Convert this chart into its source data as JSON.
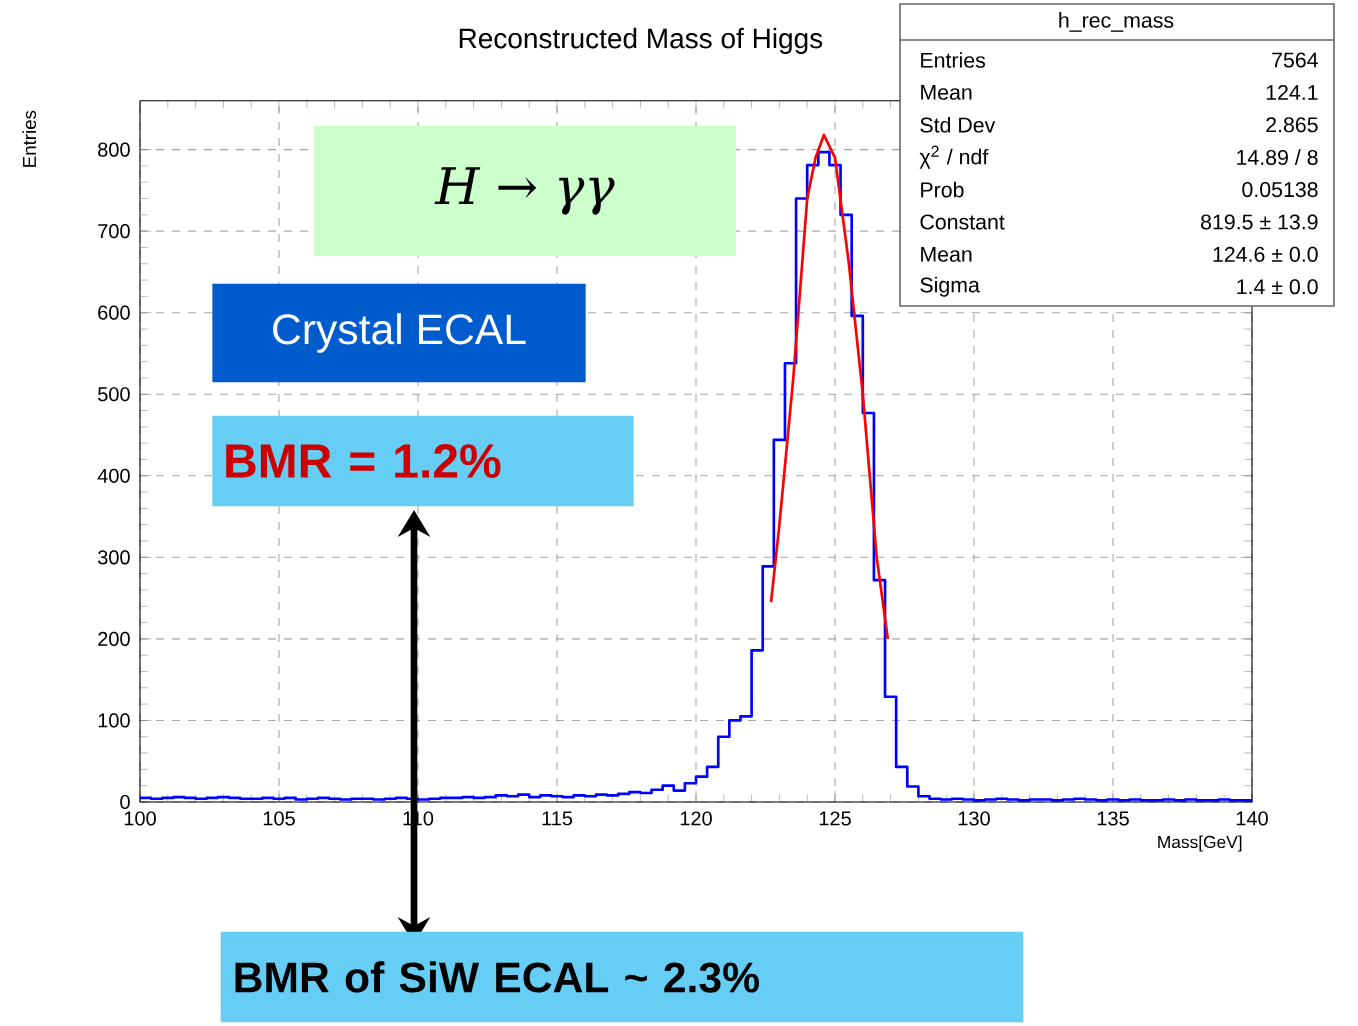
{
  "chart_data": {
    "type": "histogram",
    "title": "Reconstructed Mass of Higgs",
    "xlabel": "Mass[GeV]",
    "ylabel": "Entries",
    "color": "#0000ff",
    "bins": [
      100,
      100.4,
      100.8,
      101.2,
      101.6,
      102,
      102.4,
      102.8,
      103.2,
      103.6,
      104,
      104.4,
      104.8,
      105.2,
      105.6,
      106,
      106.4,
      106.8,
      107.2,
      107.6,
      108,
      108.4,
      108.8,
      109.2,
      109.6,
      110,
      110.4,
      110.8,
      111.2,
      111.6,
      112,
      112.4,
      112.8,
      113.2,
      113.6,
      114,
      114.4,
      114.8,
      115.2,
      115.6,
      116,
      116.4,
      116.8,
      117.2,
      117.6,
      118,
      118.4,
      118.8,
      119.2,
      119.6,
      120,
      120.4,
      120.8,
      121.2,
      121.6,
      122,
      122.4,
      122.8,
      123.2,
      123.6,
      124,
      124.4,
      124.8,
      125.2,
      125.6,
      126,
      126.4,
      126.8,
      127.2,
      127.6,
      128,
      128.4,
      128.8,
      129.2,
      129.6,
      130,
      130.4,
      130.8,
      131.2,
      131.6,
      132,
      132.4,
      132.8,
      133.2,
      133.6,
      134,
      134.4,
      134.8,
      135.2,
      135.6,
      136,
      136.4,
      136.8,
      137.2,
      137.6,
      138,
      138.4,
      138.8,
      139.2,
      139.6,
      140
    ],
    "values": [
      5,
      4,
      5,
      6,
      5,
      4,
      5,
      6,
      5,
      4,
      4,
      5,
      4,
      5,
      3,
      4,
      5,
      4,
      3,
      4,
      4,
      3,
      4,
      5,
      4,
      3,
      4,
      5,
      5,
      6,
      5,
      6,
      8,
      7,
      9,
      6,
      8,
      7,
      6,
      8,
      7,
      9,
      8,
      10,
      12,
      11,
      15,
      20,
      14,
      23,
      31,
      43,
      80,
      100,
      105,
      186,
      289,
      444,
      538,
      740,
      781,
      797,
      781,
      720,
      596,
      477,
      272,
      129,
      43,
      19,
      7,
      4,
      3,
      4,
      3,
      2,
      3,
      4,
      3,
      2,
      3,
      3,
      2,
      3,
      4,
      3,
      2,
      3,
      2,
      3,
      2,
      2,
      3,
      2,
      3,
      2,
      2,
      3,
      2,
      2
    ],
    "series": [
      {
        "type": "line",
        "color": "#ff0000",
        "x": [
          122.7,
          123,
          123.5,
          124,
          124.3,
          124.6,
          125,
          125.5,
          126,
          126.5,
          126.9
        ],
        "values": [
          245,
          340,
          520,
          740,
          790,
          818,
          790,
          660,
          500,
          300,
          200
        ]
      }
    ],
    "xlim": [
      100,
      140
    ],
    "ylim": [
      0,
      860
    ],
    "xticks": [
      100,
      105,
      110,
      115,
      120,
      125,
      130,
      135,
      140
    ],
    "yticks": [
      0,
      100,
      200,
      300,
      400,
      500,
      600,
      700,
      800
    ],
    "grid": true,
    "annotations": [
      "H → γγ",
      "Crystal ECAL",
      "BMR = 1.2%",
      "BMR of SiW ECAL ~ 2.3%",
      "h_rec_mass",
      "Entries",
      "7564",
      "Mean",
      "124.1",
      "Std Dev",
      "2.865",
      "χ$^{2}$ / ndf",
      "14.89 / 8",
      "Prob",
      "0.05138",
      "Constant",
      "819.5 ± 13.9",
      "Mean",
      "124.6 ± 0.0",
      "Sigma",
      "1.4 ± 0.0"
    ]
  }
}
